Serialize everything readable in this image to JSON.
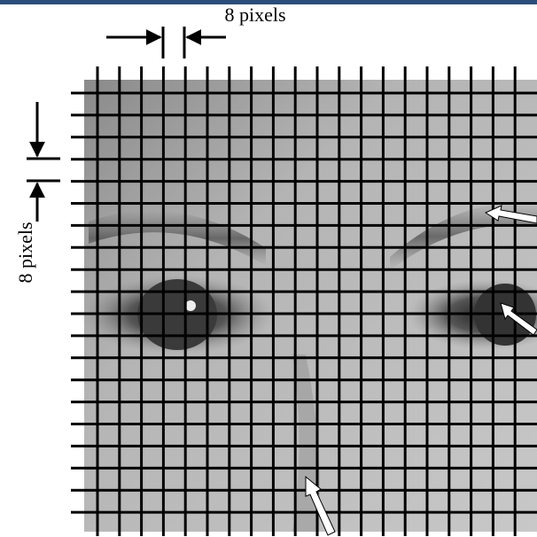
{
  "dimension_labels": {
    "horizontal": "8 pixels",
    "vertical": "8 pixels"
  }
}
